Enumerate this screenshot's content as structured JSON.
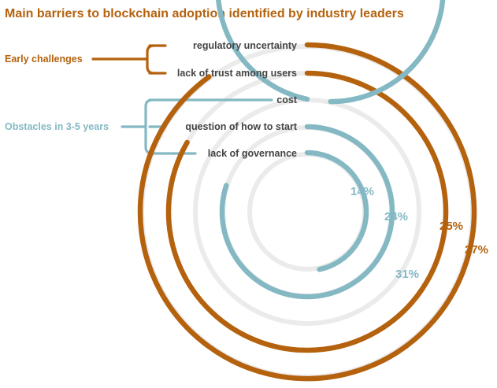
{
  "chart_data": {
    "type": "radial_bar",
    "title": "Main barriers to blockchain adoption identified by industry leaders",
    "groups": [
      {
        "name": "Early challenges",
        "color": "#b5620e",
        "categories": [
          "regulatory uncertainty",
          "lack of trust among users"
        ]
      },
      {
        "name": "Obstacles in 3-5 years",
        "color": "#84b9c4",
        "categories": [
          "cost",
          "question of how to start",
          "lack of governance"
        ]
      }
    ],
    "categories": [
      "regulatory uncertainty",
      "lack of trust among users",
      "cost",
      "question of how to start",
      "lack of governance"
    ],
    "values": [
      27,
      25,
      31,
      24,
      14
    ],
    "value_labels": [
      "27%",
      "25%",
      "31%",
      "24%",
      "14%"
    ],
    "colors": [
      "#b5620e",
      "#b5620e",
      "#84b9c4",
      "#84b9c4",
      "#84b9c4"
    ],
    "track_color": "#ebebeb",
    "title_color": "#b5620e"
  }
}
